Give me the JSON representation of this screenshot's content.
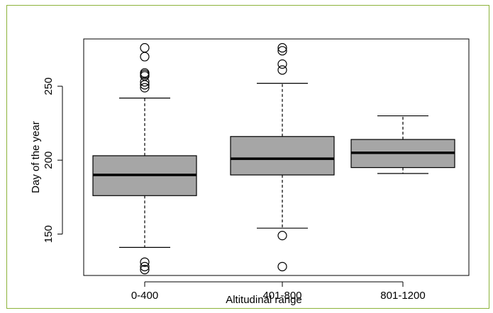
{
  "chart_data": {
    "type": "boxplot",
    "title": "",
    "xlabel": "Altitudinal range",
    "ylabel": "Day of the year",
    "categories": [
      "0-400",
      "401-800",
      "801-1200"
    ],
    "boxes": [
      {
        "category": "0-400",
        "whisker_low": 141,
        "q1": 176,
        "median": 190,
        "q3": 203,
        "whisker_high": 242,
        "outliers": [
          276,
          270,
          259,
          258,
          257,
          253,
          251,
          249,
          131,
          128,
          126
        ]
      },
      {
        "category": "401-800",
        "whisker_low": 154,
        "q1": 190,
        "median": 201,
        "q3": 216,
        "whisker_high": 252,
        "outliers": [
          276,
          274,
          265,
          261,
          149,
          128
        ]
      },
      {
        "category": "801-1200",
        "whisker_low": 191,
        "q1": 195,
        "median": 205,
        "q3": 214,
        "whisker_high": 230,
        "outliers": []
      }
    ],
    "yticks": [
      150,
      200,
      250
    ],
    "ylim": [
      122,
      282
    ],
    "box_color": "#a6a6a6",
    "frame_color": "#8cb33a",
    "grid": false
  }
}
